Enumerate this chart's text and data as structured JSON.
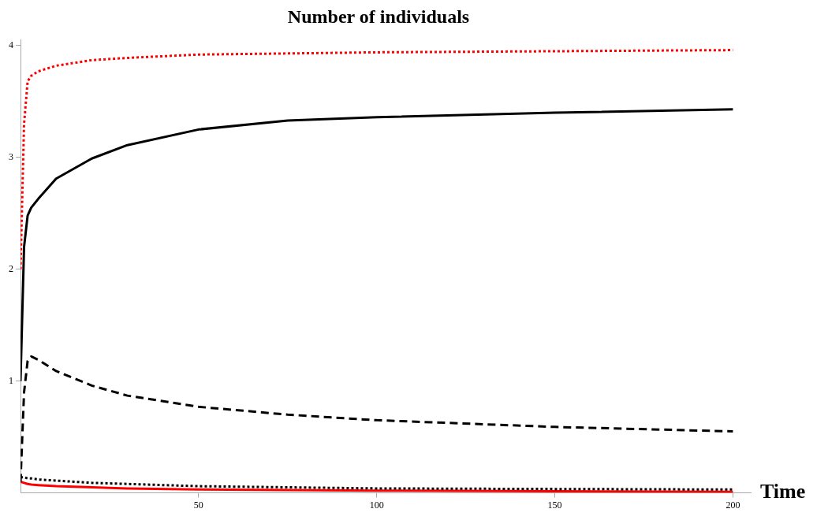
{
  "chart_data": {
    "type": "line",
    "title": "Number of individuals",
    "xlabel": "Time",
    "xlim": [
      0,
      205
    ],
    "ylim": [
      0,
      4.05
    ],
    "xticks": [
      50,
      100,
      150,
      200
    ],
    "yticks": [
      1,
      2,
      3,
      4
    ],
    "grid": false,
    "legend": false,
    "marker": "none",
    "x": [
      0,
      1,
      2,
      3,
      5,
      10,
      20,
      30,
      50,
      75,
      100,
      150,
      200
    ],
    "series": [
      {
        "color": "#ff0000",
        "line_style": "dotted",
        "values": [
          2,
          3.3,
          3.68,
          3.73,
          3.77,
          3.82,
          3.87,
          3.89,
          3.92,
          3.93,
          3.94,
          3.95,
          3.96
        ]
      },
      {
        "color": "#000000",
        "line_style": "solid",
        "values": [
          1,
          2.2,
          2.48,
          2.55,
          2.63,
          2.81,
          2.99,
          3.11,
          3.25,
          3.33,
          3.36,
          3.4,
          3.43
        ]
      },
      {
        "color": "#000000",
        "line_style": "dashed",
        "values": [
          0.1,
          0.9,
          1.18,
          1.22,
          1.19,
          1.09,
          0.96,
          0.87,
          0.77,
          0.7,
          0.65,
          0.59,
          0.55
        ]
      },
      {
        "color": "#000000",
        "line_style": "dotted",
        "values": [
          0.14,
          0.14,
          0.13,
          0.13,
          0.12,
          0.11,
          0.09,
          0.08,
          0.06,
          0.05,
          0.04,
          0.035,
          0.03
        ]
      },
      {
        "color": "#ff0000",
        "line_style": "solid",
        "values": [
          0.1,
          0.09,
          0.08,
          0.075,
          0.07,
          0.06,
          0.05,
          0.04,
          0.03,
          0.025,
          0.02,
          0.015,
          0.01
        ]
      }
    ]
  }
}
